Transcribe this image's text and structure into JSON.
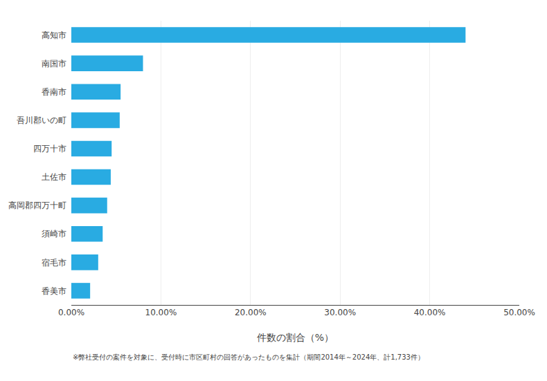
{
  "chart_data": {
    "type": "bar",
    "orientation": "horizontal",
    "categories": [
      "高知市",
      "南国市",
      "香南市",
      "吾川郡いの町",
      "四万十市",
      "土佐市",
      "高岡郡四万十町",
      "須崎市",
      "宿毛市",
      "香美市"
    ],
    "values": [
      44.0,
      8.0,
      5.5,
      5.4,
      4.5,
      4.4,
      4.0,
      3.5,
      3.0,
      2.1
    ],
    "color": "#29ABE2",
    "xlabel": "件数の割合（%）",
    "xlim": [
      0,
      50
    ],
    "xticks": [
      {
        "value": 0,
        "label": "0.00%"
      },
      {
        "value": 10,
        "label": "10.00%"
      },
      {
        "value": 20,
        "label": "20.00%"
      },
      {
        "value": 30,
        "label": "30.00%"
      },
      {
        "value": 40,
        "label": "40.00%"
      },
      {
        "value": 50,
        "label": "50.00%"
      }
    ],
    "grid": true,
    "annotation": "※弊社受付の案件を対象に、受付時に市区町村の回答があったものを集計（期間2014年～2024年、計1,733件）"
  }
}
